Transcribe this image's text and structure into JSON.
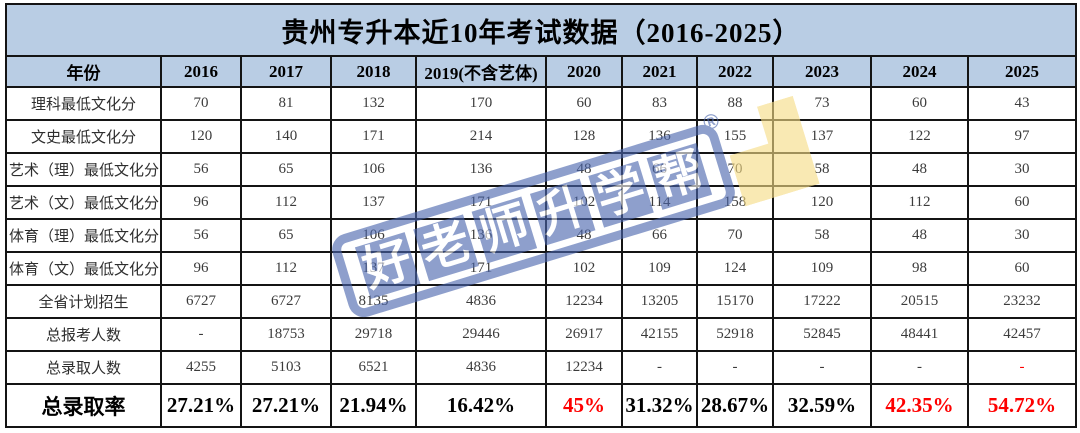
{
  "title": "贵州专升本近10年考试数据（2016-2025）",
  "colors": {
    "header_bg": "#b9cde4",
    "border": "#141414",
    "red_text": "#fe0000",
    "watermark_blue": "#4a66ad",
    "watermark_yellow": "#f6dc85"
  },
  "watermark": {
    "chars": [
      "好",
      "老",
      "师",
      "升",
      "学",
      "帮"
    ],
    "registered": "®"
  },
  "table": {
    "header": [
      "年份",
      "2016",
      "2017",
      "2018",
      "2019(不含艺体)",
      "2020",
      "2021",
      "2022",
      "2023",
      "2024",
      "2025"
    ],
    "rows": [
      {
        "label": "理科最低文化分",
        "values": [
          "70",
          "81",
          "132",
          "170",
          "60",
          "83",
          "88",
          "73",
          "60",
          "43"
        ]
      },
      {
        "label": "文史最低文化分",
        "values": [
          "120",
          "140",
          "171",
          "214",
          "128",
          "136",
          "155",
          "137",
          "122",
          "97"
        ]
      },
      {
        "label": "艺术（理）最低文化分",
        "values": [
          "56",
          "65",
          "106",
          "136",
          "48",
          "66",
          "70",
          "58",
          "48",
          "30"
        ]
      },
      {
        "label": "艺术（文）最低文化分",
        "values": [
          "96",
          "112",
          "137",
          "171",
          "102",
          "114",
          "158",
          "120",
          "112",
          "60"
        ]
      },
      {
        "label": "体育（理）最低文化分",
        "values": [
          "56",
          "65",
          "106",
          "136",
          "48",
          "66",
          "70",
          "58",
          "48",
          "30"
        ]
      },
      {
        "label": "体育（文）最低文化分",
        "values": [
          "96",
          "112",
          "137",
          "171",
          "102",
          "109",
          "124",
          "109",
          "98",
          "60"
        ]
      },
      {
        "label": "全省计划招生",
        "values": [
          "6727",
          "6727",
          "8135",
          "4836",
          "12234",
          "13205",
          "15170",
          "17222",
          "20515",
          "23232"
        ]
      },
      {
        "label": "总报考人数",
        "values": [
          "-",
          "18753",
          "29718",
          "29446",
          "26917",
          "42155",
          "52918",
          "52845",
          "48441",
          "42457"
        ]
      },
      {
        "label": "总录取人数",
        "values": [
          "4255",
          "5103",
          "6521",
          "4836",
          "12234",
          "-",
          "-",
          "-",
          "-",
          "-"
        ],
        "red_indices": [
          9
        ]
      },
      {
        "label": "总录取率",
        "values": [
          "27.21%",
          "27.21%",
          "21.94%",
          "16.42%",
          "45%",
          "31.32%",
          "28.67%",
          "32.59%",
          "42.35%",
          "54.72%"
        ],
        "red_indices": [
          4,
          8,
          9
        ],
        "emphasis": true
      }
    ]
  }
}
